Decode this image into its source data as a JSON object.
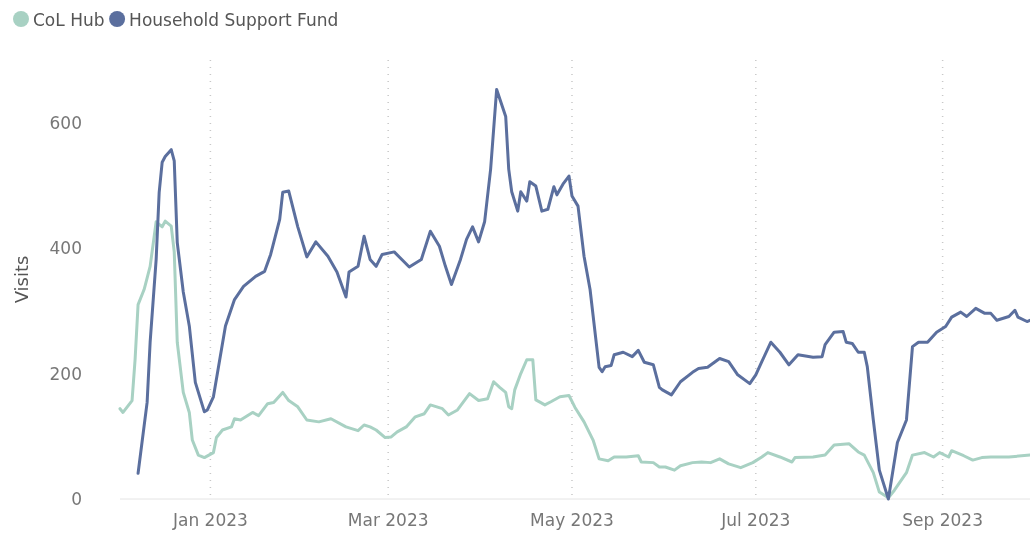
{
  "chart_data": {
    "type": "line",
    "ylabel": "Visits",
    "legend": "top left",
    "grid": "x",
    "line_style": "solid",
    "marker": "none",
    "xlim": [
      "2022-12-02",
      "2023-09-30"
    ],
    "xticks": [
      {
        "value": "2023-01-01",
        "label": "Jan 2023"
      },
      {
        "value": "2023-03-01",
        "label": "Mar 2023"
      },
      {
        "value": "2023-05-01",
        "label": "May 2023"
      },
      {
        "value": "2023-07-01",
        "label": "Jul 2023"
      },
      {
        "value": "2023-09-01",
        "label": "Sep 2023"
      }
    ],
    "ylim": [
      0,
      700
    ],
    "yticks": [
      0,
      200,
      400,
      600
    ],
    "series": [
      {
        "name": "CoL Hub",
        "color": "#a8d1c3",
        "x": [
          "2022-12-02",
          "2022-12-03",
          "2022-12-06",
          "2022-12-07",
          "2022-12-08",
          "2022-12-10",
          "2022-12-12",
          "2022-12-14",
          "2022-12-16",
          "2022-12-17",
          "2022-12-19",
          "2022-12-20",
          "2022-12-21",
          "2022-12-23",
          "2022-12-25",
          "2022-12-26",
          "2022-12-28",
          "2022-12-30",
          "2023-01-02",
          "2023-01-03",
          "2023-01-05",
          "2023-01-08",
          "2023-01-09",
          "2023-01-11",
          "2023-01-15",
          "2023-01-17",
          "2023-01-20",
          "2023-01-22",
          "2023-01-25",
          "2023-01-27",
          "2023-01-30",
          "2023-02-02",
          "2023-02-06",
          "2023-02-10",
          "2023-02-15",
          "2023-02-19",
          "2023-02-21",
          "2023-02-23",
          "2023-02-25",
          "2023-02-28",
          "2023-03-02",
          "2023-03-04",
          "2023-03-07",
          "2023-03-10",
          "2023-03-13",
          "2023-03-15",
          "2023-03-19",
          "2023-03-21",
          "2023-03-24",
          "2023-03-28",
          "2023-03-31",
          "2023-04-03",
          "2023-04-05",
          "2023-04-07",
          "2023-04-09",
          "2023-04-10",
          "2023-04-11",
          "2023-04-12",
          "2023-04-14",
          "2023-04-16",
          "2023-04-18",
          "2023-04-19",
          "2023-04-22",
          "2023-04-24",
          "2023-04-27",
          "2023-04-30",
          "2023-05-02",
          "2023-05-05",
          "2023-05-08",
          "2023-05-10",
          "2023-05-13",
          "2023-05-15",
          "2023-05-19",
          "2023-05-23",
          "2023-05-24",
          "2023-05-28",
          "2023-05-30",
          "2023-06-01",
          "2023-06-04",
          "2023-06-06",
          "2023-06-10",
          "2023-06-13",
          "2023-06-16",
          "2023-06-19",
          "2023-06-22",
          "2023-06-26",
          "2023-06-30",
          "2023-07-03",
          "2023-07-05",
          "2023-07-09",
          "2023-07-13",
          "2023-07-14",
          "2023-07-20",
          "2023-07-24",
          "2023-07-27",
          "2023-08-01",
          "2023-08-04",
          "2023-08-06",
          "2023-08-09",
          "2023-08-11",
          "2023-08-14",
          "2023-08-16",
          "2023-08-20",
          "2023-08-22",
          "2023-08-26",
          "2023-08-29",
          "2023-08-31",
          "2023-09-03",
          "2023-09-04",
          "2023-09-08",
          "2023-09-11",
          "2023-09-14",
          "2023-09-17",
          "2023-09-23",
          "2023-09-30"
        ],
        "values": [
          144,
          138,
          157,
          222,
          310,
          334,
          371,
          442,
          434,
          443,
          435,
          394,
          250,
          170,
          138,
          94,
          70,
          66,
          74,
          98,
          110,
          115,
          128,
          126,
          138,
          133,
          152,
          154,
          170,
          157,
          147,
          126,
          123,
          128,
          115,
          109,
          118,
          115,
          110,
          98,
          99,
          107,
          115,
          131,
          136,
          150,
          144,
          134,
          142,
          168,
          157,
          160,
          187,
          178,
          170,
          147,
          144,
          174,
          200,
          222,
          222,
          158,
          150,
          155,
          163,
          165,
          146,
          123,
          94,
          64,
          61,
          67,
          67,
          69,
          59,
          58,
          51,
          51,
          46,
          53,
          58,
          59,
          58,
          64,
          56,
          50,
          58,
          67,
          74,
          67,
          59,
          66,
          67,
          70,
          86,
          88,
          75,
          70,
          42,
          11,
          2,
          14,
          42,
          70,
          74,
          67,
          74,
          67,
          77,
          69,
          62,
          66,
          67,
          67,
          70
        ]
      },
      {
        "name": "Household Support Fund",
        "color": "#5b6f9e",
        "x": [
          "2022-12-08",
          "2022-12-11",
          "2022-12-12",
          "2022-12-14",
          "2022-12-15",
          "2022-12-16",
          "2022-12-17",
          "2022-12-19",
          "2022-12-20",
          "2022-12-21",
          "2022-12-23",
          "2022-12-25",
          "2022-12-27",
          "2022-12-30",
          "2022-12-31",
          "2023-01-02",
          "2023-01-06",
          "2023-01-09",
          "2023-01-12",
          "2023-01-16",
          "2023-01-19",
          "2023-01-21",
          "2023-01-24",
          "2023-01-25",
          "2023-01-27",
          "2023-01-30",
          "2023-02-02",
          "2023-02-05",
          "2023-02-09",
          "2023-02-12",
          "2023-02-15",
          "2023-02-16",
          "2023-02-19",
          "2023-02-21",
          "2023-02-23",
          "2023-02-25",
          "2023-02-27",
          "2023-03-03",
          "2023-03-08",
          "2023-03-12",
          "2023-03-15",
          "2023-03-18",
          "2023-03-20",
          "2023-03-22",
          "2023-03-25",
          "2023-03-27",
          "2023-03-29",
          "2023-03-31",
          "2023-04-02",
          "2023-04-04",
          "2023-04-06",
          "2023-04-09",
          "2023-04-10",
          "2023-04-11",
          "2023-04-13",
          "2023-04-14",
          "2023-04-16",
          "2023-04-17",
          "2023-04-19",
          "2023-04-21",
          "2023-04-23",
          "2023-04-25",
          "2023-04-26",
          "2023-04-28",
          "2023-04-30",
          "2023-05-01",
          "2023-05-03",
          "2023-05-05",
          "2023-05-07",
          "2023-05-10",
          "2023-05-11",
          "2023-05-12",
          "2023-05-14",
          "2023-05-15",
          "2023-05-18",
          "2023-05-21",
          "2023-05-23",
          "2023-05-25",
          "2023-05-28",
          "2023-05-30",
          "2023-05-31",
          "2023-06-03",
          "2023-06-06",
          "2023-06-10",
          "2023-06-12",
          "2023-06-15",
          "2023-06-19",
          "2023-06-22",
          "2023-06-25",
          "2023-06-29",
          "2023-07-01",
          "2023-07-03",
          "2023-07-06",
          "2023-07-09",
          "2023-07-12",
          "2023-07-15",
          "2023-07-20",
          "2023-07-23",
          "2023-07-24",
          "2023-07-27",
          "2023-07-30",
          "2023-07-31",
          "2023-08-02",
          "2023-08-04",
          "2023-08-06",
          "2023-08-07",
          "2023-08-09",
          "2023-08-11",
          "2023-08-14",
          "2023-08-17",
          "2023-08-20",
          "2023-08-22",
          "2023-08-24",
          "2023-08-27",
          "2023-08-30",
          "2023-09-02",
          "2023-09-04",
          "2023-09-07",
          "2023-09-09",
          "2023-09-12",
          "2023-09-15",
          "2023-09-17",
          "2023-09-19",
          "2023-09-23",
          "2023-09-25",
          "2023-09-26",
          "2023-09-29",
          "2023-09-30"
        ],
        "values": [
          41,
          154,
          250,
          382,
          489,
          537,
          546,
          557,
          539,
          409,
          330,
          276,
          186,
          139,
          142,
          163,
          276,
          318,
          339,
          355,
          363,
          390,
          446,
          489,
          491,
          434,
          386,
          410,
          387,
          362,
          322,
          362,
          371,
          419,
          382,
          371,
          390,
          394,
          370,
          382,
          427,
          403,
          371,
          342,
          382,
          414,
          434,
          410,
          442,
          526,
          653,
          610,
          526,
          490,
          459,
          490,
          475,
          506,
          499,
          459,
          462,
          498,
          485,
          502,
          515,
          483,
          467,
          387,
          334,
          210,
          203,
          211,
          213,
          230,
          234,
          227,
          237,
          218,
          214,
          178,
          174,
          166,
          187,
          202,
          208,
          210,
          224,
          219,
          198,
          184,
          198,
          219,
          250,
          234,
          214,
          230,
          226,
          227,
          246,
          266,
          267,
          250,
          248,
          234,
          234,
          211,
          126,
          46,
          0,
          90,
          126,
          243,
          250,
          250,
          266,
          275,
          290,
          298,
          291,
          304,
          296,
          296,
          285,
          291,
          301,
          290,
          283,
          285
        ]
      }
    ]
  }
}
